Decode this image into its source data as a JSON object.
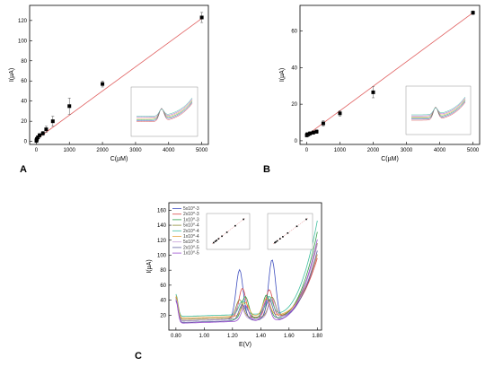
{
  "chart_data": [
    {
      "panel": "A",
      "type": "scatter",
      "xlabel": "C(µM)",
      "ylabel": "I(µA)",
      "xlim": [
        -200,
        5200
      ],
      "ylim": [
        -3,
        135
      ],
      "xticks": [
        0,
        1000,
        2000,
        3000,
        4000,
        5000
      ],
      "yticks": [
        0,
        20,
        40,
        60,
        80,
        100,
        120
      ],
      "fit_line": {
        "x": [
          0,
          5000
        ],
        "y": [
          2,
          122
        ]
      },
      "points": [
        {
          "x": 5,
          "y": 0.5,
          "err": 1
        },
        {
          "x": 10,
          "y": 1.5,
          "err": 1
        },
        {
          "x": 20,
          "y": 2.5,
          "err": 1.5
        },
        {
          "x": 50,
          "y": 4,
          "err": 1.5
        },
        {
          "x": 100,
          "y": 6,
          "err": 2
        },
        {
          "x": 200,
          "y": 8,
          "err": 2
        },
        {
          "x": 300,
          "y": 12,
          "err": 3
        },
        {
          "x": 500,
          "y": 20,
          "err": 5
        },
        {
          "x": 1000,
          "y": 35,
          "err": 8
        },
        {
          "x": 2000,
          "y": 57,
          "err": 3
        },
        {
          "x": 5000,
          "y": 123,
          "err": 5
        }
      ],
      "inset": "voltammogram overlay",
      "grid": false
    },
    {
      "panel": "B",
      "type": "scatter",
      "xlabel": "C(µM)",
      "ylabel": "I(µA)",
      "xlim": [
        -200,
        5200
      ],
      "ylim": [
        -2,
        74
      ],
      "xticks": [
        0,
        1000,
        2000,
        3000,
        4000,
        5000
      ],
      "yticks": [
        0,
        20,
        40,
        60
      ],
      "fit_line": {
        "x": [
          0,
          5000
        ],
        "y": [
          3,
          70
        ]
      },
      "points": [
        {
          "x": 5,
          "y": 3,
          "err": 1
        },
        {
          "x": 20,
          "y": 3.5,
          "err": 1
        },
        {
          "x": 50,
          "y": 3.5,
          "err": 1
        },
        {
          "x": 100,
          "y": 4,
          "err": 1
        },
        {
          "x": 200,
          "y": 4.5,
          "err": 1
        },
        {
          "x": 300,
          "y": 5,
          "err": 1
        },
        {
          "x": 500,
          "y": 9.5,
          "err": 1.5
        },
        {
          "x": 1000,
          "y": 15,
          "err": 1.5
        },
        {
          "x": 2000,
          "y": 26.5,
          "err": 3
        },
        {
          "x": 5000,
          "y": 70,
          "err": 1
        }
      ],
      "inset": "voltammogram overlay",
      "grid": false
    },
    {
      "panel": "C",
      "type": "line",
      "xlabel": "E(V)",
      "ylabel": "I(µA)",
      "xlim": [
        0.75,
        1.83
      ],
      "ylim": [
        0,
        170
      ],
      "xticks": [
        0.8,
        1.0,
        1.2,
        1.4,
        1.6,
        1.8
      ],
      "xtick_labels": [
        "0.80",
        "1.00",
        "1.20",
        "1.40",
        "1.60",
        "1.80"
      ],
      "yticks": [
        20,
        40,
        60,
        80,
        100,
        120,
        140,
        160
      ],
      "legend": "top-left",
      "grid": false,
      "series": [
        {
          "name": "5x10^-3",
          "color": "#3f4fbf",
          "peak1": 78,
          "peak2": 90,
          "base": 12,
          "end": 95
        },
        {
          "name": "2x10^-3",
          "color": "#d94a4a",
          "peak1": 53,
          "peak2": 50,
          "base": 14,
          "end": 90
        },
        {
          "name": "1x10^-3",
          "color": "#2e9e47",
          "peak1": 42,
          "peak2": 43,
          "base": 12,
          "end": 125
        },
        {
          "name": "5x10^-4",
          "color": "#8e8e3a",
          "peak1": 38,
          "peak2": 40,
          "base": 14,
          "end": 110
        },
        {
          "name": "2x10^-4",
          "color": "#3fbf9f",
          "peak1": 36,
          "peak2": 41,
          "base": 18,
          "end": 140
        },
        {
          "name": "1x10^-4",
          "color": "#e8a23c",
          "peak1": 34,
          "peak2": 39,
          "base": 16,
          "end": 95
        },
        {
          "name": "5x10^-5",
          "color": "#c8a0d8",
          "peak1": 33,
          "peak2": 38,
          "base": 12,
          "end": 108
        },
        {
          "name": "2x10^-5",
          "color": "#6060a0",
          "peak1": 31,
          "peak2": 37,
          "base": 10,
          "end": 100
        },
        {
          "name": "1x10^-5",
          "color": "#9a4fd0",
          "peak1": 30,
          "peak2": 36,
          "base": 9,
          "end": 115
        }
      ],
      "insets": 2
    }
  ]
}
